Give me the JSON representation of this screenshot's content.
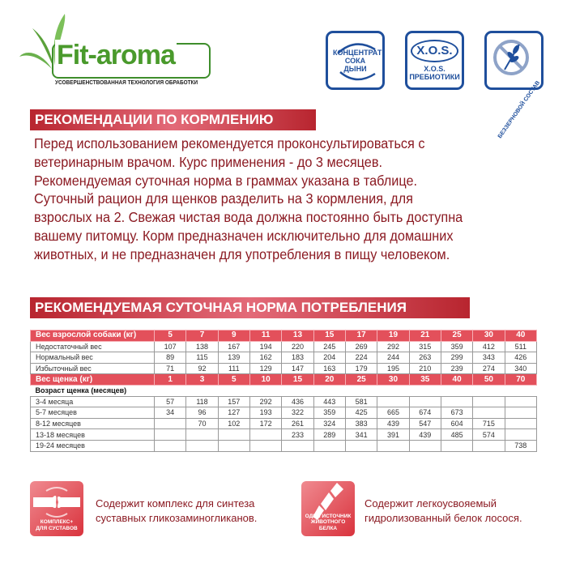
{
  "logo": {
    "name": "Fit-aroma",
    "subtitle": "УСОВЕРШЕНСТВОВАННАЯ ТЕХНОЛОГИЯ ОБРАБОТКИ"
  },
  "badges": [
    {
      "icon": "melon-juice-icon",
      "text": "КОНЦЕНТРАТ СОКА ДЫНИ"
    },
    {
      "icon": "xos-icon",
      "logo_text": "X.O.S.",
      "line1": "X.O.S.",
      "line2": "ПРЕБИОТИКИ"
    },
    {
      "icon": "grain-free-icon",
      "text": "БЕЗЗЕРНОВОЙ СОСТАВ"
    }
  ],
  "feeding": {
    "title": "РЕКОМЕНДАЦИИ ПО КОРМЛЕНИЮ",
    "lines": [
      "Перед использованием рекомендуется проконсультироваться с",
      "ветеринарным врачом. Курс применения - до 3 месяцев.",
      "Рекомендуемая суточная норма в граммах указана в таблице.",
      "Суточный рацион для щенков разделить на 3 кормления, для",
      "взрослых на 2. Свежая чистая вода должна постоянно быть доступна",
      "вашему питомцу. Корм предназначен исключительно для домашних",
      "животных, и не предназначен для употребления в пищу человеком."
    ]
  },
  "norm": {
    "title": "РЕКОМЕНДУЕМАЯ СУТОЧНАЯ НОРМА ПОТРЕБЛЕНИЯ",
    "adult_header": {
      "label": "Вес взрослой собаки (кг)",
      "values": [
        "5",
        "7",
        "9",
        "11",
        "13",
        "15",
        "17",
        "19",
        "21",
        "25",
        "30",
        "40"
      ]
    },
    "adult_rows": [
      {
        "label": "Недостаточный вес",
        "values": [
          "107",
          "138",
          "167",
          "194",
          "220",
          "245",
          "269",
          "292",
          "315",
          "359",
          "412",
          "511"
        ]
      },
      {
        "label": "Нормальный вес",
        "values": [
          "89",
          "115",
          "139",
          "162",
          "183",
          "204",
          "224",
          "244",
          "263",
          "299",
          "343",
          "426"
        ]
      },
      {
        "label": "Избыточный вес",
        "values": [
          "71",
          "92",
          "111",
          "129",
          "147",
          "163",
          "179",
          "195",
          "210",
          "239",
          "274",
          "340"
        ]
      }
    ],
    "puppy_header": {
      "label": "Вес щенка (кг)",
      "values": [
        "1",
        "3",
        "5",
        "10",
        "15",
        "20",
        "25",
        "30",
        "35",
        "40",
        "50",
        "70"
      ]
    },
    "puppy_subheader": "Возраст щенка (месяцев)",
    "puppy_rows": [
      {
        "label": "3-4 месяца",
        "values": [
          "57",
          "118",
          "157",
          "292",
          "436",
          "443",
          "581",
          "",
          "",
          "",
          "",
          ""
        ]
      },
      {
        "label": "5-7 месяцев",
        "values": [
          "34",
          "96",
          "127",
          "193",
          "322",
          "359",
          "425",
          "665",
          "674",
          "673",
          "",
          ""
        ]
      },
      {
        "label": "8-12 месяцев",
        "values": [
          "",
          "70",
          "102",
          "172",
          "261",
          "324",
          "383",
          "439",
          "547",
          "604",
          "715",
          ""
        ]
      },
      {
        "label": "13-18 месяцев",
        "values": [
          "",
          "",
          "",
          "",
          "233",
          "289",
          "341",
          "391",
          "439",
          "485",
          "574",
          ""
        ]
      },
      {
        "label": "19-24 месяцев",
        "values": [
          "",
          "",
          "",
          "",
          "",
          "",
          "",
          "",
          "",
          "",
          "",
          "738"
        ]
      }
    ]
  },
  "features": [
    {
      "icon": "joint-icon",
      "caption1": "КОМПЛЕКС+",
      "caption2": "ДЛЯ СУСТАВОВ",
      "line1": "Содержит комплекс для синтеза",
      "line2": "суставных гликозаминогликанов."
    },
    {
      "icon": "salmon-icon",
      "caption1": "ОДИН ИСТОЧНИК",
      "caption2": "ЖИВОТНОГО БЕЛКА",
      "line1": "Содержит легкоусвояемый",
      "line2": "гидролизованный белок лосося."
    }
  ],
  "colors": {
    "accent": "#e3505b",
    "text": "#8b1a22",
    "badge": "#1f4f9c",
    "logo": "#4a9a2c"
  }
}
